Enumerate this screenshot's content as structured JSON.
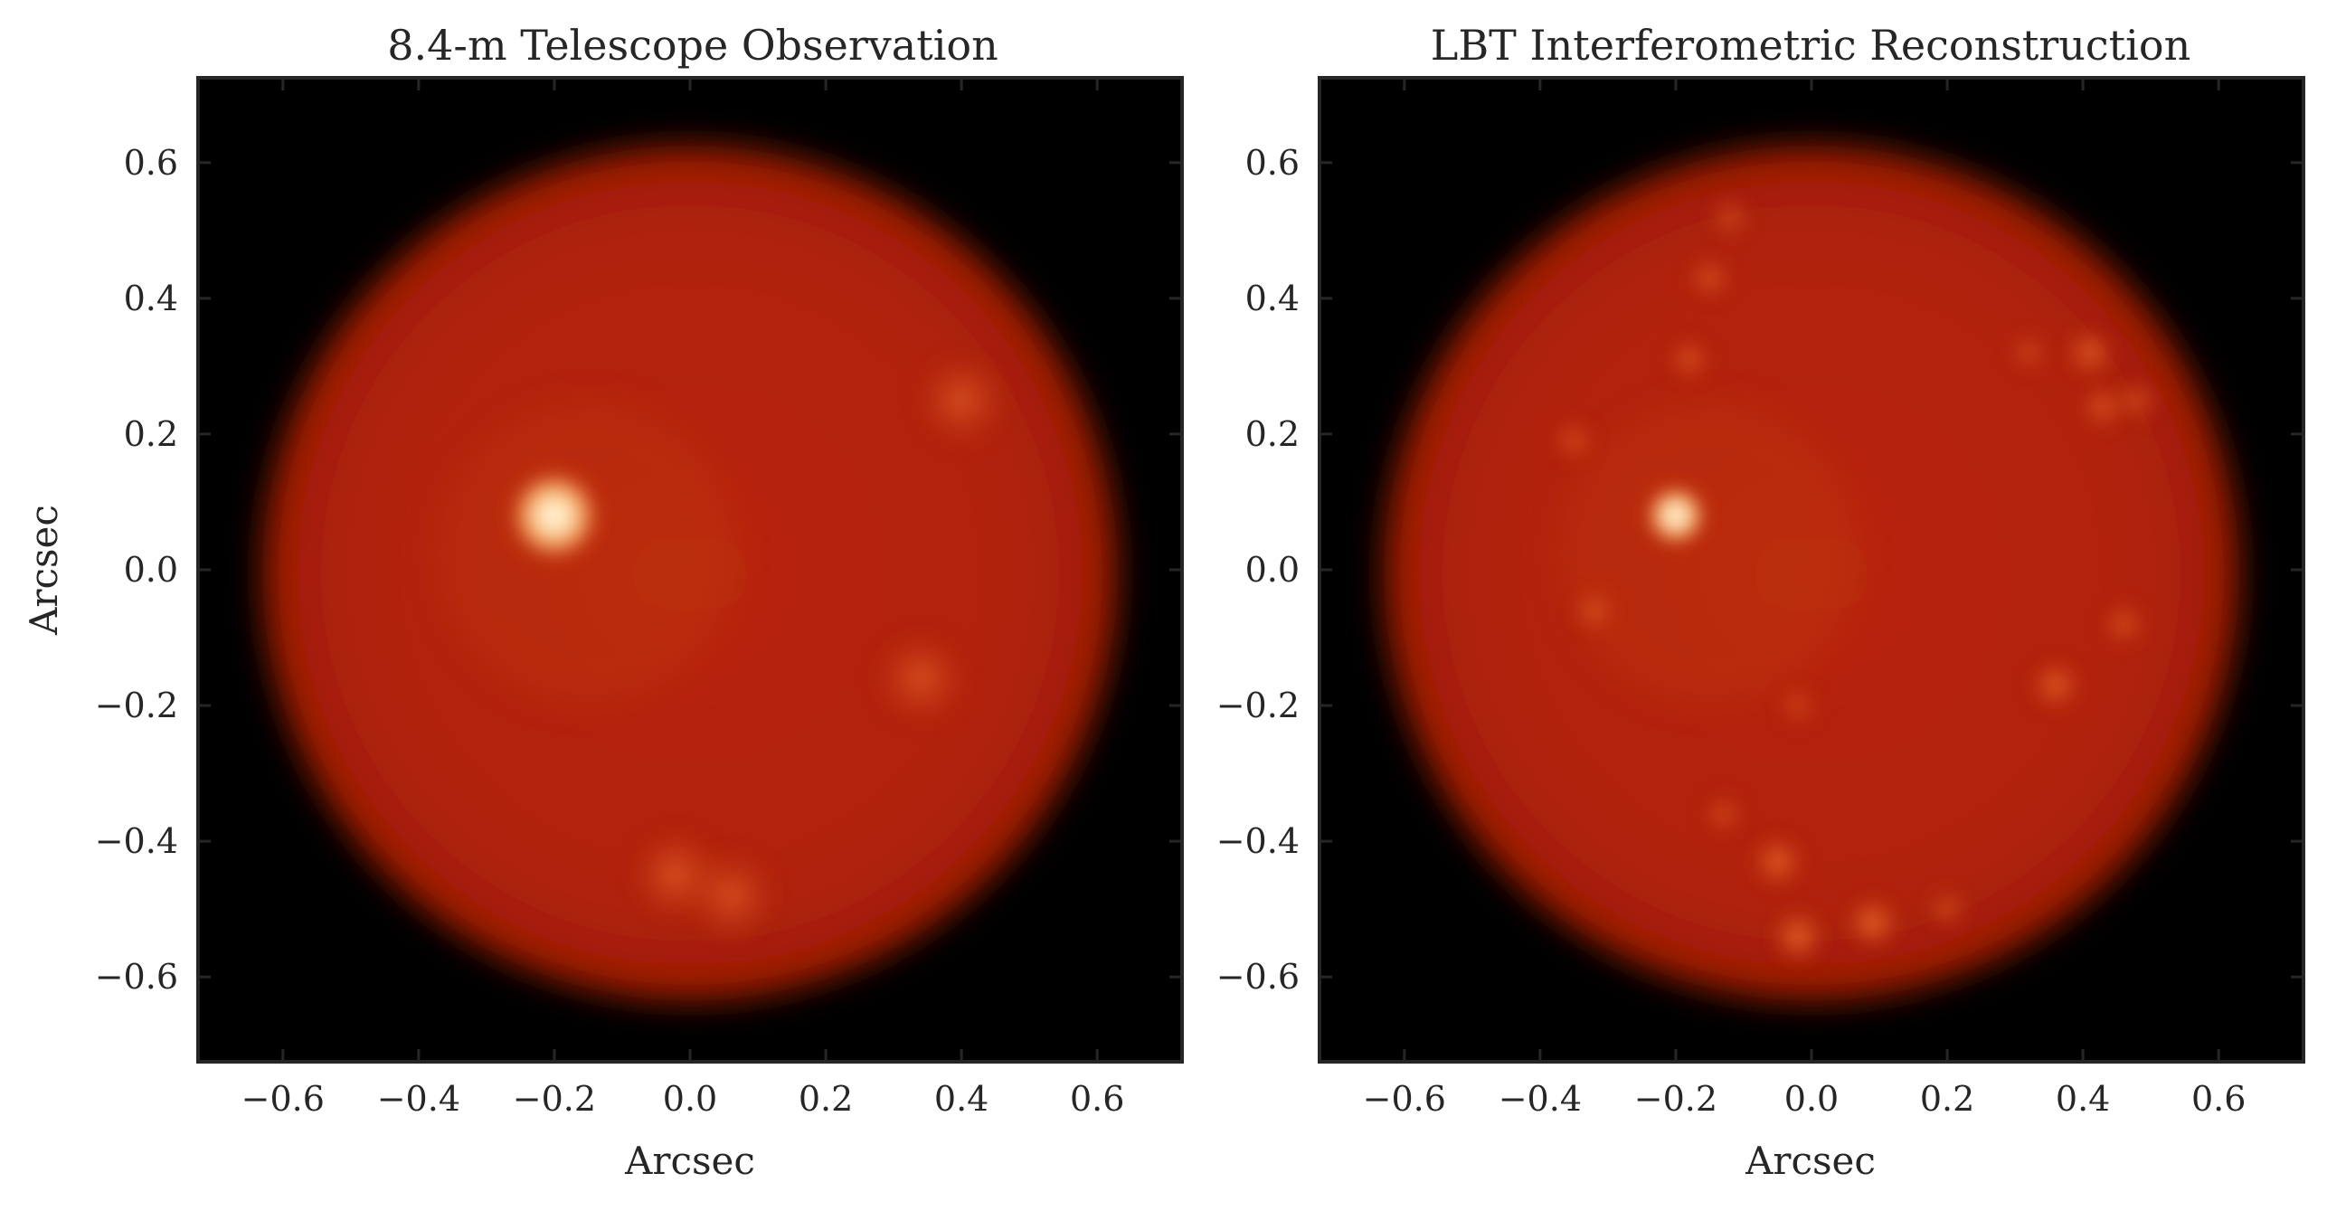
{
  "chart_data": [
    {
      "type": "heatmap",
      "title": "8.4-m Telescope Observation",
      "xlabel": "Arcsec",
      "ylabel": "Arcsec",
      "xlim": [
        -0.725,
        0.725
      ],
      "ylim": [
        -0.725,
        0.725
      ],
      "xticks": [
        -0.6,
        -0.4,
        -0.2,
        0.0,
        0.2,
        0.4,
        0.6
      ],
      "yticks": [
        -0.6,
        -0.4,
        -0.2,
        0.0,
        0.2,
        0.4,
        0.6
      ],
      "xtick_labels": [
        "−0.6",
        "−0.4",
        "−0.2",
        "0.0",
        "0.2",
        "0.4",
        "0.6"
      ],
      "ytick_labels": [
        "−0.6",
        "−0.4",
        "−0.2",
        "0.0",
        "0.2",
        "0.4",
        "0.6"
      ],
      "disk": {
        "center": [
          0.0,
          -0.005
        ],
        "radius": 0.63
      },
      "grid": false,
      "colormap": "gist_heat",
      "sources": [
        {
          "x": -0.2,
          "y": 0.08,
          "brightness": 1.0
        },
        {
          "x": 0.4,
          "y": 0.25,
          "brightness": 0.25
        },
        {
          "x": 0.34,
          "y": -0.16,
          "brightness": 0.25
        },
        {
          "x": -0.02,
          "y": -0.45,
          "brightness": 0.3
        },
        {
          "x": 0.06,
          "y": -0.48,
          "brightness": 0.25
        }
      ]
    },
    {
      "type": "heatmap",
      "title": "LBT Interferometric Reconstruction",
      "xlabel": "Arcsec",
      "ylabel": "",
      "xlim": [
        -0.725,
        0.725
      ],
      "ylim": [
        -0.725,
        0.725
      ],
      "xticks": [
        -0.6,
        -0.4,
        -0.2,
        0.0,
        0.2,
        0.4,
        0.6
      ],
      "yticks": [
        -0.6,
        -0.4,
        -0.2,
        0.0,
        0.2,
        0.4,
        0.6
      ],
      "xtick_labels": [
        "−0.6",
        "−0.4",
        "−0.2",
        "0.0",
        "0.2",
        "0.4",
        "0.6"
      ],
      "ytick_labels": [
        "−0.6",
        "−0.4",
        "−0.2",
        "0.0",
        "0.2",
        "0.4",
        "0.6"
      ],
      "disk": {
        "center": [
          0.0,
          -0.005
        ],
        "radius": 0.63
      },
      "grid": false,
      "colormap": "gist_heat",
      "sources": [
        {
          "x": -0.2,
          "y": 0.08,
          "brightness": 1.0
        },
        {
          "x": 0.41,
          "y": 0.32,
          "brightness": 0.45
        },
        {
          "x": 0.43,
          "y": 0.24,
          "brightness": 0.35
        },
        {
          "x": 0.48,
          "y": 0.25,
          "brightness": 0.25
        },
        {
          "x": 0.36,
          "y": -0.17,
          "brightness": 0.5
        },
        {
          "x": 0.46,
          "y": -0.08,
          "brightness": 0.3
        },
        {
          "x": -0.15,
          "y": 0.43,
          "brightness": 0.3
        },
        {
          "x": -0.18,
          "y": 0.31,
          "brightness": 0.3
        },
        {
          "x": -0.12,
          "y": 0.52,
          "brightness": 0.2
        },
        {
          "x": -0.35,
          "y": 0.19,
          "brightness": 0.25
        },
        {
          "x": -0.32,
          "y": -0.06,
          "brightness": 0.3
        },
        {
          "x": -0.05,
          "y": -0.43,
          "brightness": 0.55
        },
        {
          "x": -0.02,
          "y": -0.54,
          "brightness": 0.6
        },
        {
          "x": 0.09,
          "y": -0.52,
          "brightness": 0.6
        },
        {
          "x": -0.13,
          "y": -0.36,
          "brightness": 0.2
        },
        {
          "x": 0.2,
          "y": -0.5,
          "brightness": 0.2
        },
        {
          "x": -0.02,
          "y": -0.2,
          "brightness": 0.15
        },
        {
          "x": 0.32,
          "y": 0.32,
          "brightness": 0.15
        }
      ]
    }
  ]
}
